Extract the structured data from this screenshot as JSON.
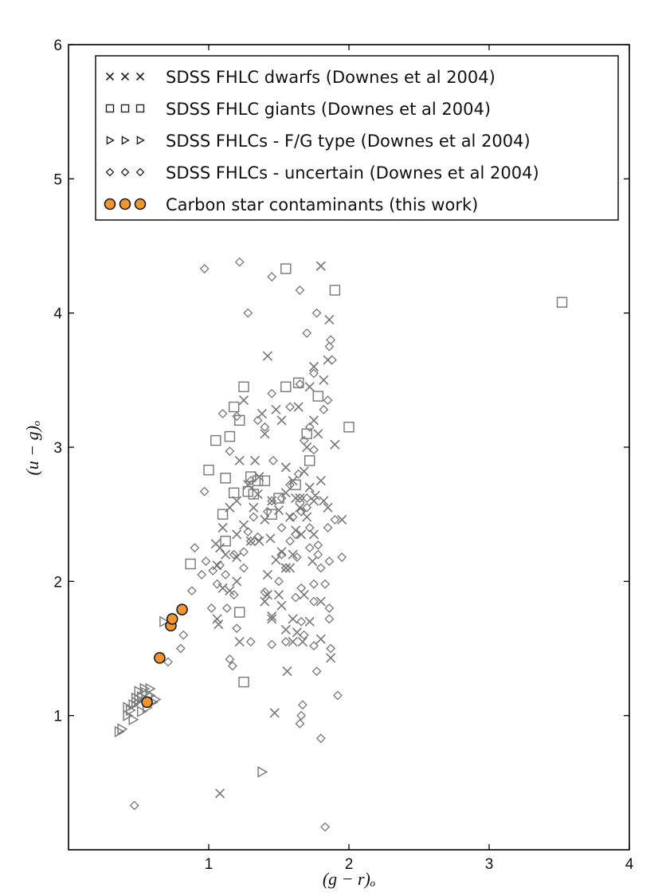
{
  "chart_data": {
    "type": "scatter",
    "title": "",
    "xlabel": "(g − r)ₒ",
    "ylabel": "(u − g)ₒ",
    "xlim": [
      0,
      4
    ],
    "ylim": [
      0,
      6
    ],
    "xticks": [
      1,
      2,
      3,
      4
    ],
    "yticks": [
      1,
      2,
      3,
      4,
      5,
      6
    ],
    "grid": false,
    "legend_position": "top",
    "colors": {
      "background_markers": "#777777",
      "carbon_fill": "#f0962c",
      "carbon_edge": "#1a1a1a"
    },
    "series": [
      {
        "name": "SDSS FHLC dwarfs (Downes et al 2004)",
        "marker": "x",
        "points": [
          [
            1.08,
            0.42
          ],
          [
            1.47,
            1.02
          ],
          [
            1.87,
            1.43
          ],
          [
            1.56,
            1.33
          ],
          [
            1.67,
            1.55
          ],
          [
            1.8,
            1.57
          ],
          [
            1.72,
            1.7
          ],
          [
            1.55,
            1.64
          ],
          [
            1.6,
            1.72
          ],
          [
            1.45,
            1.74
          ],
          [
            1.4,
            1.85
          ],
          [
            1.5,
            1.9
          ],
          [
            1.55,
            2.1
          ],
          [
            1.6,
            2.2
          ],
          [
            1.52,
            2.22
          ],
          [
            1.62,
            2.38
          ],
          [
            1.58,
            2.48
          ],
          [
            1.65,
            2.55
          ],
          [
            1.75,
            2.6
          ],
          [
            1.8,
            2.75
          ],
          [
            1.68,
            2.82
          ],
          [
            1.7,
            3.0
          ],
          [
            1.78,
            3.1
          ],
          [
            1.75,
            3.2
          ],
          [
            1.64,
            3.3
          ],
          [
            1.72,
            3.45
          ],
          [
            1.75,
            3.6
          ],
          [
            1.85,
            3.65
          ],
          [
            1.8,
            4.35
          ],
          [
            1.86,
            3.95
          ],
          [
            1.82,
            3.5
          ],
          [
            1.52,
            3.2
          ],
          [
            1.48,
            3.28
          ],
          [
            1.4,
            3.1
          ],
          [
            1.38,
            3.25
          ],
          [
            1.42,
            3.68
          ],
          [
            1.33,
            2.9
          ],
          [
            1.36,
            2.78
          ],
          [
            1.32,
            2.55
          ],
          [
            1.28,
            2.72
          ],
          [
            1.25,
            2.42
          ],
          [
            1.3,
            2.3
          ],
          [
            1.2,
            2.35
          ],
          [
            1.1,
            2.4
          ],
          [
            1.08,
            2.25
          ],
          [
            1.15,
            2.55
          ],
          [
            1.06,
            1.72
          ],
          [
            1.07,
            1.68
          ],
          [
            1.15,
            1.93
          ],
          [
            1.2,
            2.18
          ],
          [
            1.22,
            1.55
          ],
          [
            1.45,
            1.72
          ],
          [
            1.6,
            1.55
          ],
          [
            1.63,
            1.62
          ],
          [
            1.68,
            1.9
          ],
          [
            1.74,
            2.15
          ],
          [
            1.75,
            2.35
          ],
          [
            1.62,
            2.62
          ],
          [
            1.55,
            2.66
          ],
          [
            1.45,
            2.6
          ],
          [
            1.4,
            2.46
          ],
          [
            1.35,
            2.65
          ],
          [
            1.55,
            2.85
          ],
          [
            1.6,
            2.75
          ],
          [
            1.72,
            2.7
          ],
          [
            1.85,
            2.55
          ],
          [
            1.9,
            3.02
          ],
          [
            1.95,
            2.46
          ],
          [
            1.82,
            2.6
          ],
          [
            1.7,
            2.48
          ],
          [
            1.66,
            2.35
          ],
          [
            1.58,
            2.1
          ],
          [
            1.48,
            2.16
          ],
          [
            1.42,
            2.05
          ],
          [
            1.36,
            2.3
          ],
          [
            1.2,
            2.6
          ],
          [
            1.12,
            2.2
          ],
          [
            1.06,
            2.12
          ],
          [
            1.05,
            2.28
          ],
          [
            1.22,
            2.9
          ],
          [
            1.25,
            3.35
          ],
          [
            1.44,
            2.32
          ],
          [
            1.5,
            2.53
          ],
          [
            1.65,
            2.62
          ],
          [
            1.76,
            2.64
          ],
          [
            1.1,
            1.95
          ],
          [
            1.2,
            2.0
          ],
          [
            1.42,
            1.9
          ],
          [
            1.52,
            1.82
          ],
          [
            1.8,
            1.85
          ]
        ]
      },
      {
        "name": "SDSS FHLC giants (Downes et al 2004)",
        "marker": "square",
        "points": [
          [
            1.25,
            1.25
          ],
          [
            1.22,
            1.77
          ],
          [
            1.12,
            2.3
          ],
          [
            0.87,
            2.13
          ],
          [
            1.0,
            2.83
          ],
          [
            1.05,
            3.05
          ],
          [
            1.12,
            2.77
          ],
          [
            1.18,
            2.66
          ],
          [
            1.15,
            3.08
          ],
          [
            1.18,
            3.3
          ],
          [
            1.25,
            3.45
          ],
          [
            1.3,
            2.78
          ],
          [
            1.35,
            2.75
          ],
          [
            1.28,
            2.67
          ],
          [
            1.4,
            2.75
          ],
          [
            1.55,
            3.45
          ],
          [
            1.64,
            3.48
          ],
          [
            1.78,
            3.38
          ],
          [
            2.0,
            3.15
          ],
          [
            1.9,
            4.17
          ],
          [
            1.55,
            4.33
          ],
          [
            3.52,
            4.08
          ],
          [
            1.5,
            2.62
          ],
          [
            1.45,
            2.5
          ],
          [
            1.62,
            2.72
          ],
          [
            1.7,
            3.1
          ],
          [
            1.72,
            2.9
          ],
          [
            1.32,
            2.65
          ],
          [
            1.22,
            3.2
          ],
          [
            1.1,
            2.5
          ]
        ]
      },
      {
        "name": "SDSS FHLCs - F/G type (Downes et al 2004)",
        "marker": "triangle",
        "points": [
          [
            0.36,
            0.88
          ],
          [
            0.38,
            0.9
          ],
          [
            0.42,
            1.0
          ],
          [
            0.44,
            1.04
          ],
          [
            0.46,
            1.08
          ],
          [
            0.48,
            1.1
          ],
          [
            0.5,
            1.12
          ],
          [
            0.52,
            1.14
          ],
          [
            0.55,
            1.17
          ],
          [
            0.58,
            1.2
          ],
          [
            0.6,
            1.1
          ],
          [
            0.62,
            1.12
          ],
          [
            0.52,
            1.03
          ],
          [
            0.46,
            0.97
          ],
          [
            0.5,
            1.18
          ],
          [
            0.54,
            1.2
          ],
          [
            0.56,
            1.06
          ],
          [
            0.42,
            1.06
          ],
          [
            0.48,
            1.13
          ],
          [
            0.58,
            1.15
          ],
          [
            0.68,
            1.7
          ],
          [
            1.38,
            0.58
          ]
        ]
      },
      {
        "name": "SDSS FHLCs - uncertain (Downes et al 2004)",
        "marker": "diamond",
        "points": [
          [
            0.47,
            0.33
          ],
          [
            1.83,
            0.17
          ],
          [
            1.8,
            0.83
          ],
          [
            1.65,
            0.94
          ],
          [
            1.66,
            1.0
          ],
          [
            1.67,
            1.08
          ],
          [
            1.92,
            1.15
          ],
          [
            1.77,
            1.33
          ],
          [
            1.87,
            1.5
          ],
          [
            1.75,
            1.52
          ],
          [
            1.55,
            1.55
          ],
          [
            1.66,
            1.7
          ],
          [
            1.86,
            1.72
          ],
          [
            1.86,
            1.8
          ],
          [
            1.83,
            1.98
          ],
          [
            1.86,
            2.15
          ],
          [
            1.95,
            2.18
          ],
          [
            1.75,
            1.98
          ],
          [
            1.66,
            1.95
          ],
          [
            1.62,
            1.88
          ],
          [
            1.72,
            2.25
          ],
          [
            1.78,
            2.27
          ],
          [
            1.62,
            2.35
          ],
          [
            1.52,
            2.4
          ],
          [
            1.45,
            2.6
          ],
          [
            1.6,
            2.48
          ],
          [
            1.66,
            2.52
          ],
          [
            1.7,
            2.55
          ],
          [
            1.65,
            2.62
          ],
          [
            1.58,
            2.72
          ],
          [
            1.64,
            2.8
          ],
          [
            1.7,
            2.62
          ],
          [
            1.75,
            2.98
          ],
          [
            1.68,
            3.05
          ],
          [
            1.72,
            3.15
          ],
          [
            1.82,
            3.28
          ],
          [
            1.85,
            3.35
          ],
          [
            1.88,
            3.65
          ],
          [
            1.87,
            3.8
          ],
          [
            1.86,
            3.75
          ],
          [
            1.7,
            3.85
          ],
          [
            1.77,
            4.0
          ],
          [
            1.65,
            4.17
          ],
          [
            1.45,
            4.27
          ],
          [
            1.28,
            4.0
          ],
          [
            1.22,
            4.38
          ],
          [
            0.97,
            4.33
          ],
          [
            1.2,
            3.23
          ],
          [
            1.1,
            3.25
          ],
          [
            1.15,
            2.97
          ],
          [
            1.35,
            3.2
          ],
          [
            1.4,
            3.15
          ],
          [
            1.45,
            3.4
          ],
          [
            1.58,
            3.3
          ],
          [
            1.65,
            3.47
          ],
          [
            1.75,
            3.55
          ],
          [
            1.32,
            2.48
          ],
          [
            1.35,
            2.33
          ],
          [
            1.28,
            2.37
          ],
          [
            1.25,
            2.22
          ],
          [
            1.18,
            2.2
          ],
          [
            1.12,
            2.05
          ],
          [
            1.06,
            1.98
          ],
          [
            1.03,
            2.08
          ],
          [
            0.98,
            2.15
          ],
          [
            0.95,
            2.05
          ],
          [
            0.9,
            2.25
          ],
          [
            0.88,
            1.93
          ],
          [
            1.18,
            1.9
          ],
          [
            1.15,
            1.42
          ],
          [
            1.17,
            1.37
          ],
          [
            1.3,
            1.55
          ],
          [
            1.45,
            1.53
          ],
          [
            1.4,
            1.92
          ],
          [
            1.5,
            2.0
          ],
          [
            1.55,
            2.1
          ],
          [
            1.52,
            2.2
          ],
          [
            1.58,
            2.3
          ],
          [
            1.63,
            2.18
          ],
          [
            1.25,
            2.1
          ],
          [
            1.13,
            1.8
          ],
          [
            1.08,
            2.12
          ],
          [
            1.3,
            2.3
          ],
          [
            0.97,
            2.67
          ],
          [
            1.42,
            2.52
          ],
          [
            1.46,
            2.9
          ],
          [
            1.52,
            2.62
          ],
          [
            1.3,
            2.75
          ],
          [
            1.72,
            2.4
          ],
          [
            1.78,
            2.2
          ],
          [
            1.85,
            2.4
          ],
          [
            1.9,
            2.46
          ],
          [
            1.8,
            2.1
          ],
          [
            1.75,
            1.85
          ],
          [
            1.68,
            1.6
          ],
          [
            0.71,
            1.4
          ],
          [
            0.82,
            1.6
          ],
          [
            0.8,
            1.5
          ],
          [
            1.02,
            1.8
          ],
          [
            1.2,
            1.65
          ]
        ]
      },
      {
        "name": "Carbon star contaminants (this work)",
        "marker": "circle",
        "points": [
          [
            0.56,
            1.1
          ],
          [
            0.65,
            1.43
          ],
          [
            0.73,
            1.67
          ],
          [
            0.74,
            1.72
          ],
          [
            0.81,
            1.79
          ]
        ]
      }
    ]
  }
}
